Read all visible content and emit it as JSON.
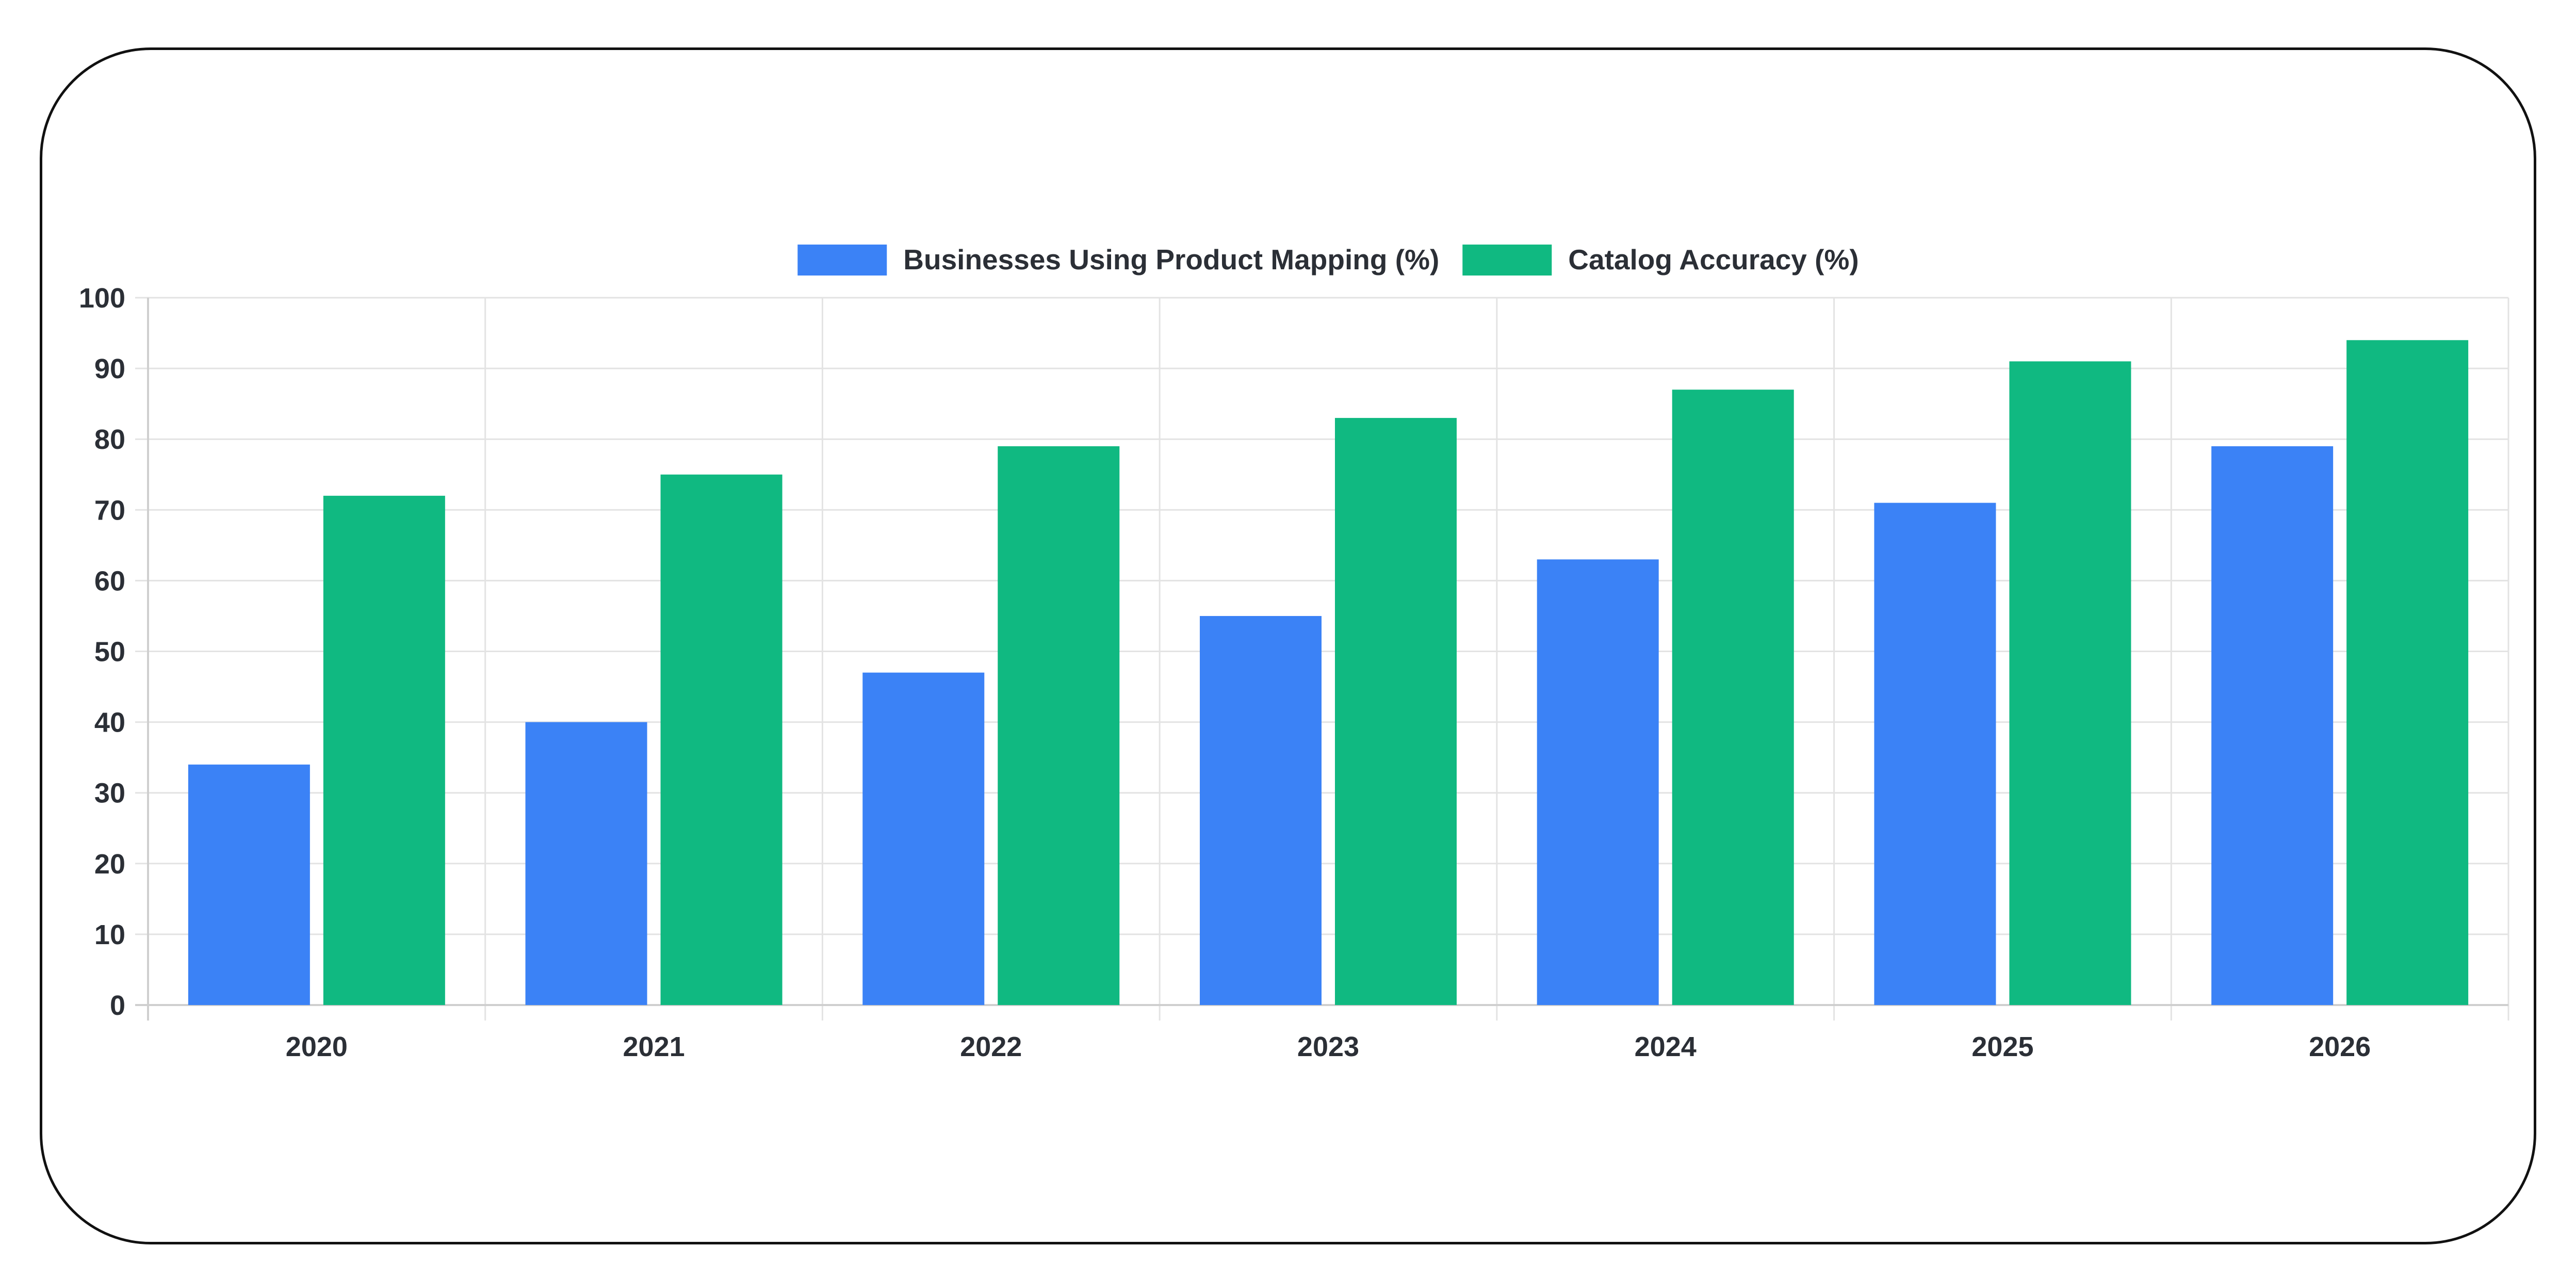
{
  "chart_data": {
    "type": "bar",
    "categories": [
      "2020",
      "2021",
      "2022",
      "2023",
      "2024",
      "2025",
      "2026"
    ],
    "series": [
      {
        "name": "Businesses Using Product Mapping (%)",
        "color": "#3b82f6",
        "values": [
          34,
          40,
          47,
          55,
          63,
          71,
          79
        ]
      },
      {
        "name": "Catalog Accuracy (%)",
        "color": "#10b981",
        "values": [
          72,
          75,
          79,
          83,
          87,
          91,
          94
        ]
      }
    ],
    "ylim": [
      0,
      100
    ],
    "yticks": [
      "0",
      "10",
      "20",
      "30",
      "40",
      "50",
      "60",
      "70",
      "80",
      "90",
      "100"
    ],
    "grid": true,
    "legend_position": "top-center"
  }
}
